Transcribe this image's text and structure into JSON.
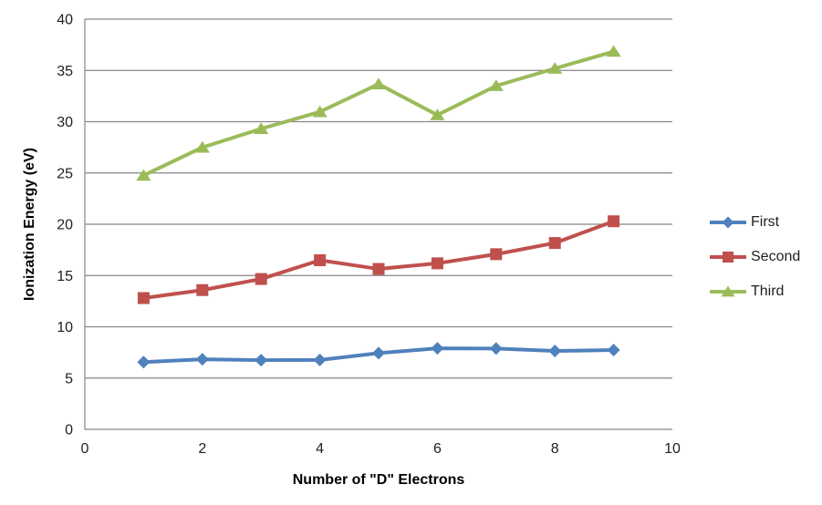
{
  "chart_data": {
    "type": "line",
    "title": "",
    "xlabel": "Number of \"D\" Electrons",
    "ylabel": "Ionization Energy (eV)",
    "x": [
      1,
      2,
      3,
      4,
      5,
      6,
      7,
      8,
      9
    ],
    "series": [
      {
        "name": "First",
        "color": "#4F81BD",
        "marker": "diamond",
        "values": [
          6.56,
          6.83,
          6.75,
          6.77,
          7.43,
          7.9,
          7.88,
          7.64,
          7.73
        ]
      },
      {
        "name": "Second",
        "color": "#C0504D",
        "marker": "square",
        "values": [
          12.8,
          13.58,
          14.66,
          16.49,
          15.64,
          16.19,
          17.08,
          18.17,
          20.29
        ]
      },
      {
        "name": "Third",
        "color": "#9BBB59",
        "marker": "triangle",
        "values": [
          24.76,
          27.49,
          29.31,
          30.96,
          33.67,
          30.65,
          33.5,
          35.19,
          36.84
        ]
      }
    ],
    "xlim": [
      0,
      10
    ],
    "ylim": [
      0,
      40
    ],
    "x_ticks": [
      0,
      2,
      4,
      6,
      8,
      10
    ],
    "y_ticks": [
      0,
      5,
      10,
      15,
      20,
      25,
      30,
      35,
      40
    ],
    "grid": "horizontal",
    "grid_color": "#878787",
    "legend_position": "right",
    "background": "#FFFFFF"
  }
}
